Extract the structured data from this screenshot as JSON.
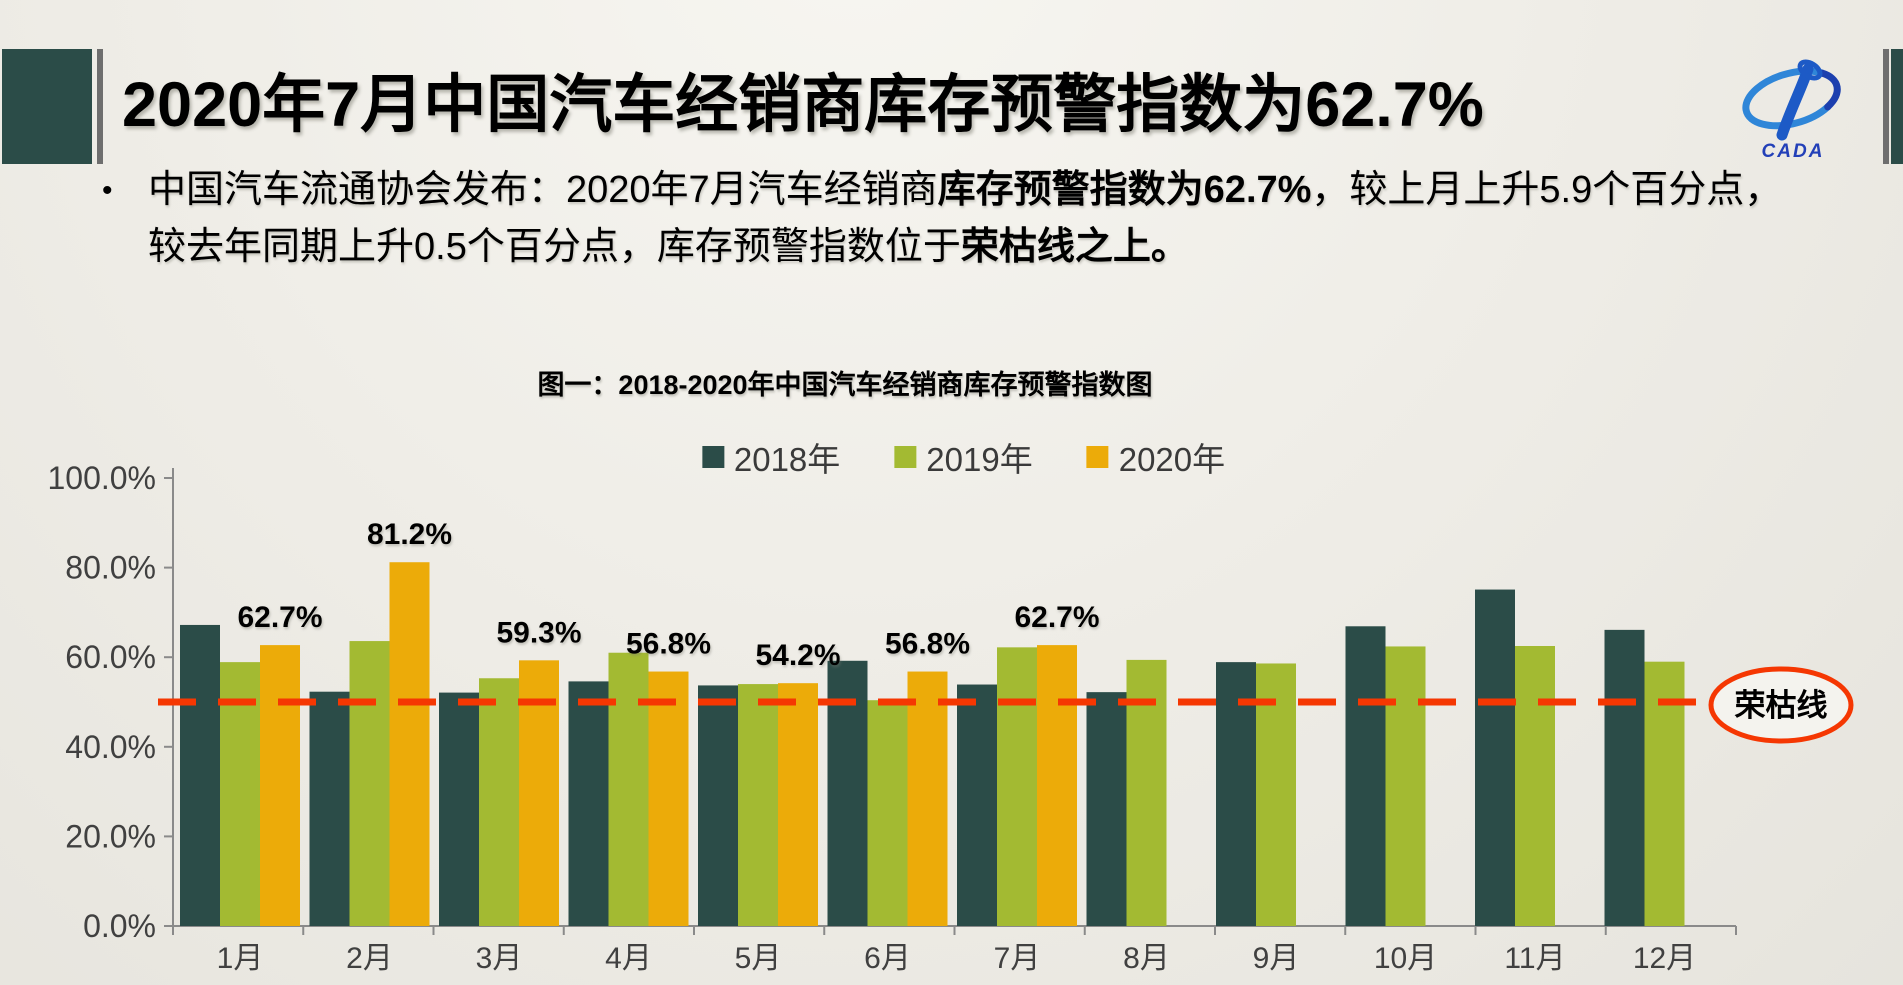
{
  "slide": {
    "title": "2020年7月中国汽车经销商库存预警指数为62.7%",
    "logo_text": "CADA",
    "bullet_marker": "•",
    "bullet_segments": [
      {
        "text": "中国汽车流通协会发布：2020年7月汽车经销商",
        "bold": false
      },
      {
        "text": "库存预警指数为62.7%",
        "bold": true
      },
      {
        "text": "，较上月上升5.9个百分点，\n较去年同期上升0.5个百分点，库存预警指数位于",
        "bold": false
      },
      {
        "text": "荣枯线之上。",
        "bold": true
      }
    ]
  },
  "chart_data": {
    "type": "bar",
    "title": "图一：2018-2020年中国汽车经销商库存预警指数图",
    "categories": [
      "1月",
      "2月",
      "3月",
      "4月",
      "5月",
      "6月",
      "7月",
      "8月",
      "9月",
      "10月",
      "11月",
      "12月"
    ],
    "series": [
      {
        "name": "2018年",
        "color": "#2b4c48",
        "values": [
          67.2,
          52.3,
          52.1,
          54.6,
          53.7,
          59.2,
          53.9,
          52.2,
          58.9,
          66.9,
          75.1,
          66.1
        ]
      },
      {
        "name": "2019年",
        "color": "#a3ba32",
        "values": [
          58.9,
          63.6,
          55.3,
          61.0,
          54.0,
          50.4,
          62.2,
          59.4,
          58.6,
          62.4,
          62.5,
          59.0
        ]
      },
      {
        "name": "2020年",
        "color": "#ecab09",
        "values": [
          62.7,
          81.2,
          59.3,
          56.8,
          54.2,
          56.8,
          62.7,
          null,
          null,
          null,
          null,
          null
        ]
      }
    ],
    "data_labels": [
      "62.7%",
      "81.2%",
      "59.3%",
      "56.8%",
      "54.2%",
      "56.8%",
      "62.7%"
    ],
    "y_ticks": [
      "100.0%",
      "80.0%",
      "60.0%",
      "40.0%",
      "20.0%",
      "0.0%"
    ],
    "y_tick_values": [
      100,
      80,
      60,
      40,
      20,
      0
    ],
    "ylim": [
      0,
      100
    ],
    "grid": false,
    "legend_position": "top",
    "reference_line": {
      "value": 50,
      "label": "荣枯线",
      "color": "#f53702"
    }
  }
}
